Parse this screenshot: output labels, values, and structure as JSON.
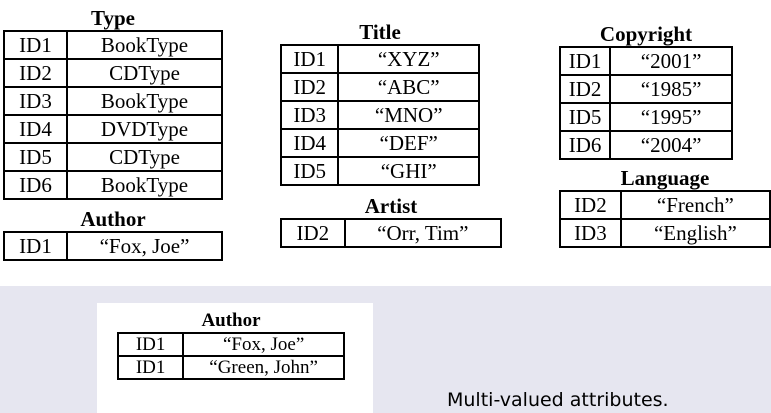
{
  "tables": [
    {
      "id": "type",
      "title": "Type",
      "rows": [
        [
          "ID1",
          "BookType"
        ],
        [
          "ID2",
          "CDType"
        ],
        [
          "ID3",
          "BookType"
        ],
        [
          "ID4",
          "DVDType"
        ],
        [
          "ID5",
          "CDType"
        ],
        [
          "ID6",
          "BookType"
        ]
      ]
    },
    {
      "id": "author",
      "title": "Author",
      "rows": [
        [
          "ID1",
          "“Fox, Joe”"
        ]
      ]
    },
    {
      "id": "title",
      "title": "Title",
      "rows": [
        [
          "ID1",
          "“XYZ”"
        ],
        [
          "ID2",
          "“ABC”"
        ],
        [
          "ID3",
          "“MNO”"
        ],
        [
          "ID4",
          "“DEF”"
        ],
        [
          "ID5",
          "“GHI”"
        ]
      ]
    },
    {
      "id": "artist",
      "title": "Artist",
      "rows": [
        [
          "ID2",
          "“Orr, Tim”"
        ]
      ]
    },
    {
      "id": "copyright",
      "title": "Copyright",
      "rows": [
        [
          "ID1",
          "“2001”"
        ],
        [
          "ID2",
          "“1985”"
        ],
        [
          "ID5",
          "“1995”"
        ],
        [
          "ID6",
          "“2004”"
        ]
      ]
    },
    {
      "id": "language",
      "title": "Language",
      "rows": [
        [
          "ID2",
          "“French”"
        ],
        [
          "ID3",
          "“English”"
        ]
      ]
    },
    {
      "id": "author-multi",
      "title": "Author",
      "rows": [
        [
          "ID1",
          "“Fox, Joe”"
        ],
        [
          "ID1",
          "“Green, John”"
        ]
      ]
    }
  ],
  "caption": "Multi-valued attributes."
}
